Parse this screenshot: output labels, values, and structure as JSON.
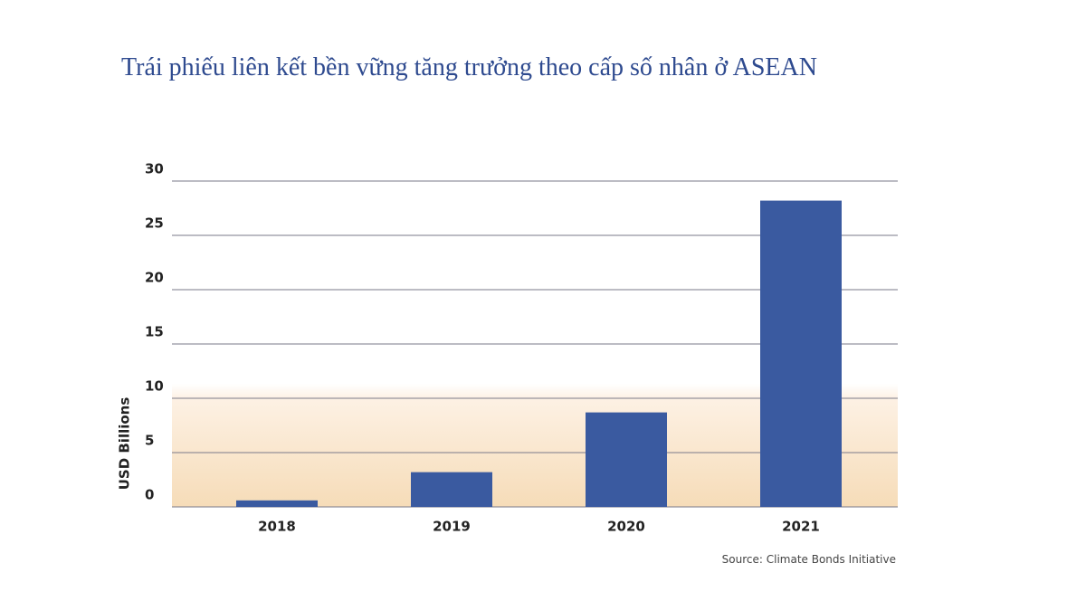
{
  "chart_data": {
    "type": "bar",
    "title": "Trái phiếu liên kết bền vững tăng trưởng theo cấp số nhân ở ASEAN",
    "y_label": "USD Billions",
    "source": "Source: Climate Bonds Initiative",
    "categories": [
      "2018",
      "2019",
      "2020",
      "2021"
    ],
    "values": [
      0.6,
      3.2,
      8.7,
      28.2
    ],
    "color": "#3a5aa0",
    "ylim": [
      0,
      30
    ],
    "yticks": [
      0,
      5,
      10,
      15,
      20,
      25,
      30
    ],
    "grid": true
  }
}
